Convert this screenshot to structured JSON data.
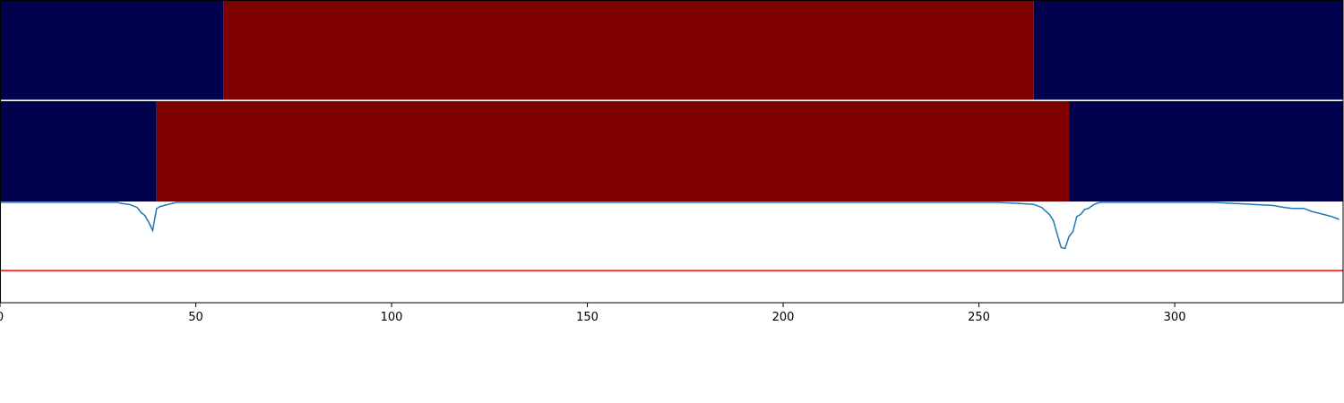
{
  "chart_data": [
    {
      "type": "heatmap",
      "panel": "top-band",
      "x_domain": [
        0,
        343
      ],
      "segments": [
        {
          "x_start": 0,
          "x_end": 57,
          "value": "low",
          "color": "#00004c"
        },
        {
          "x_start": 57,
          "x_end": 264,
          "value": "high",
          "color": "#7f0000"
        },
        {
          "x_start": 264,
          "x_end": 343,
          "value": "low",
          "color": "#00004c"
        }
      ]
    },
    {
      "type": "heatmap",
      "panel": "middle-band",
      "x_domain": [
        0,
        343
      ],
      "segments": [
        {
          "x_start": 0,
          "x_end": 40,
          "value": "low",
          "color": "#00004c"
        },
        {
          "x_start": 40,
          "x_end": 273,
          "value": "high",
          "color": "#7f0000"
        },
        {
          "x_start": 273,
          "x_end": 343,
          "value": "low",
          "color": "#00004c"
        }
      ]
    },
    {
      "type": "line",
      "panel": "bottom-plot",
      "xlim": [
        0,
        343
      ],
      "ylim": [
        0,
        1
      ],
      "grid": false,
      "line_color": "#1f77b4",
      "threshold": {
        "value": 0.32,
        "color": "#ff0000"
      },
      "x_ticks": [
        0,
        50,
        100,
        150,
        200,
        250,
        300
      ],
      "x_tick_labels": [
        "0",
        "50",
        "100",
        "150",
        "200",
        "250",
        "300"
      ],
      "series": [
        {
          "x": [
            0,
            10,
            20,
            30,
            31,
            33,
            35,
            36,
            37,
            38,
            39,
            40,
            41,
            42,
            43,
            44,
            45,
            50,
            100,
            150,
            200,
            250,
            255,
            260,
            264,
            266,
            268,
            269,
            270,
            271,
            272,
            273,
            274,
            275,
            276,
            277,
            278,
            279,
            280,
            281,
            290,
            300,
            310,
            315,
            320,
            325,
            328,
            330,
            333,
            335,
            338,
            340,
            342
          ],
          "y": [
            1.0,
            1.0,
            1.0,
            1.0,
            0.99,
            0.98,
            0.95,
            0.9,
            0.87,
            0.8,
            0.72,
            0.94,
            0.96,
            0.97,
            0.98,
            0.99,
            1.0,
            1.0,
            1.0,
            1.0,
            1.0,
            1.0,
            1.0,
            0.99,
            0.98,
            0.95,
            0.88,
            0.82,
            0.68,
            0.55,
            0.54,
            0.66,
            0.71,
            0.86,
            0.88,
            0.93,
            0.94,
            0.97,
            0.99,
            1.0,
            1.0,
            1.0,
            1.0,
            0.99,
            0.98,
            0.97,
            0.95,
            0.94,
            0.94,
            0.91,
            0.88,
            0.86,
            0.83
          ]
        }
      ]
    }
  ]
}
